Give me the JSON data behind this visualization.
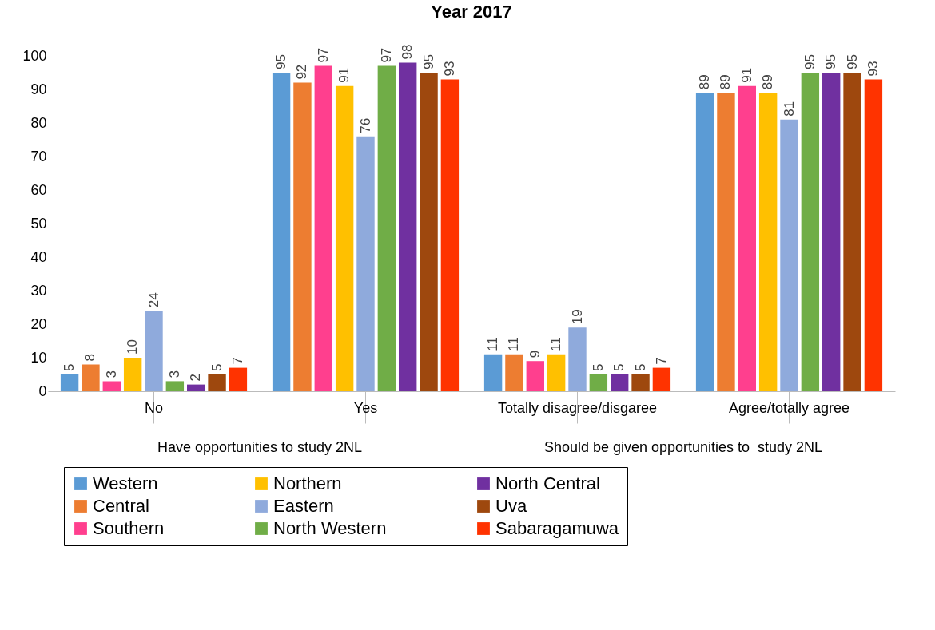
{
  "chart_data": {
    "type": "bar",
    "title": "Year 2017",
    "categories": [
      "No",
      "Yes",
      "Totally disagree/disgaree",
      "Agree/totally agree"
    ],
    "series": [
      {
        "name": "Western",
        "color": "#5b9bd5",
        "values": [
          5,
          95,
          11,
          89
        ]
      },
      {
        "name": "Central",
        "color": "#ed7d31",
        "values": [
          8,
          92,
          11,
          89
        ]
      },
      {
        "name": "Southern",
        "color": "#ff3f8e",
        "values": [
          3,
          97,
          9,
          91
        ]
      },
      {
        "name": "Northern",
        "color": "#ffc000",
        "values": [
          10,
          91,
          11,
          89
        ]
      },
      {
        "name": "Eastern",
        "color": "#8faadc",
        "values": [
          24,
          76,
          19,
          81
        ]
      },
      {
        "name": "North Western",
        "color": "#70ad47",
        "values": [
          3,
          97,
          5,
          95
        ]
      },
      {
        "name": "North Central",
        "color": "#7030a0",
        "values": [
          2,
          98,
          5,
          95
        ]
      },
      {
        "name": "Uva",
        "color": "#9e480e",
        "values": [
          5,
          95,
          5,
          95
        ]
      },
      {
        "name": "Sabaragamuwa",
        "color": "#ff3300",
        "values": [
          7,
          93,
          7,
          93
        ]
      }
    ],
    "annotations": [
      "Have opportunities to study 2NL",
      "Should be given opportunities to  study 2NL"
    ],
    "ylim": [
      0,
      100
    ],
    "yticks": [
      0,
      10,
      20,
      30,
      40,
      50,
      60,
      70,
      80,
      90,
      100
    ],
    "data_labels": true,
    "grid": false,
    "legend": "bottom left"
  }
}
